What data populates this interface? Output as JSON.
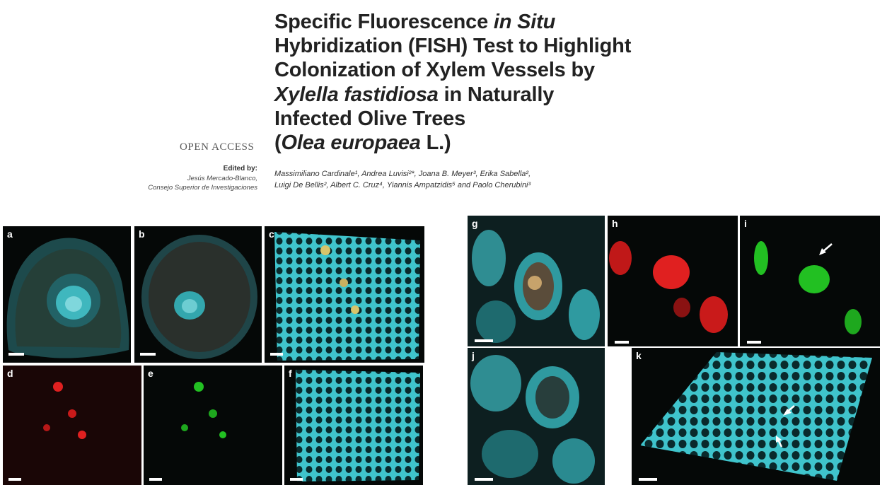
{
  "header": {
    "title_lines": [
      [
        "Specific Fluorescence ",
        "in Situ"
      ],
      [
        "Hybridization (FISH) Test to Highlight",
        ""
      ],
      [
        "Colonization of Xylem Vessels by",
        ""
      ],
      [
        "",
        "Xylella fastidiosa",
        " in Naturally"
      ],
      [
        "Infected Olive Trees",
        ""
      ],
      [
        "(",
        "Olea europaea",
        " L.)"
      ]
    ],
    "open_access": "OPEN ACCESS",
    "edited_by_label": "Edited by:",
    "editor_name": "Jesús Mercado-Blanco,",
    "editor_affiliation": "Consejo Superior de Investigaciones",
    "authors_line1": "Massimiliano Cardinale¹, Andrea Luvisi²*, Joana B. Meyer³, Erika Sabella²,",
    "authors_line2": "Luigi De Bellis², Albert C. Cruz⁴, Yiannis Ampatzidis⁵ and Paolo Cherubini³"
  },
  "panels": [
    {
      "label": "a",
      "type": "cross-section",
      "color": "#2fb3b8"
    },
    {
      "label": "b",
      "type": "round-section",
      "color": "#2fb3b8"
    },
    {
      "label": "c",
      "type": "xylem-3d",
      "color": "#3fc4cc"
    },
    {
      "label": "d",
      "type": "red-signal",
      "color": "#e02020"
    },
    {
      "label": "e",
      "type": "green-signal",
      "color": "#22c022"
    },
    {
      "label": "f",
      "type": "xylem-3d",
      "color": "#3fc4cc"
    },
    {
      "label": "g",
      "type": "vessel-closeup",
      "color": "#2f9aa0"
    },
    {
      "label": "h",
      "type": "red-signal",
      "color": "#e02020"
    },
    {
      "label": "i",
      "type": "green-signal",
      "color": "#22c022"
    },
    {
      "label": "j",
      "type": "vessel-closeup",
      "color": "#2f9aa0"
    },
    {
      "label": "k",
      "type": "xylem-3d",
      "color": "#3fc4cc"
    }
  ]
}
